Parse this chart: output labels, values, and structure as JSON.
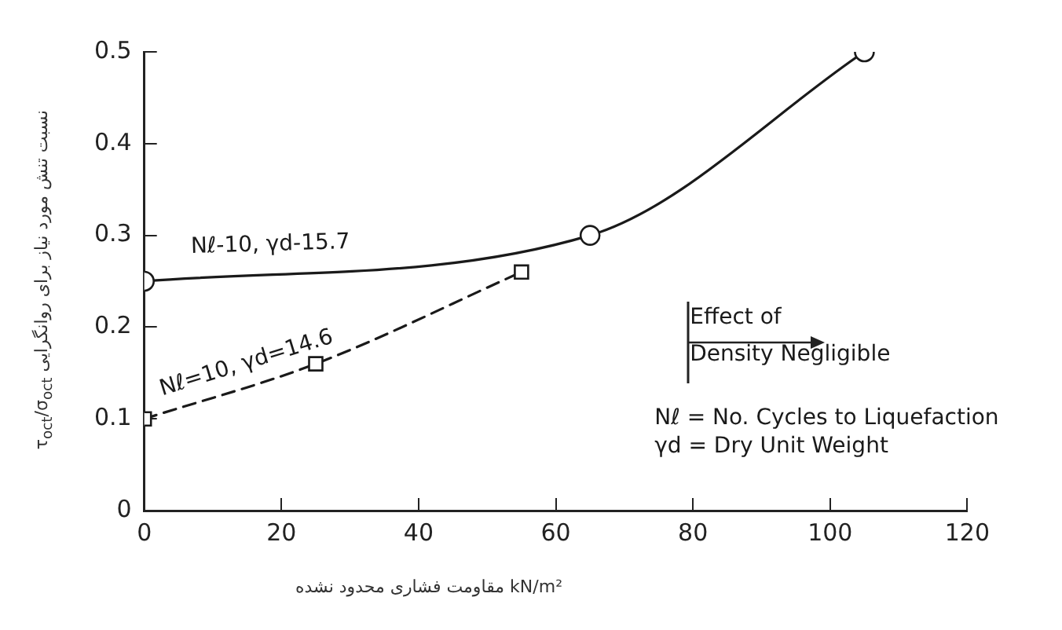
{
  "chart_data": {
    "type": "line",
    "xlabel": "مقاومت فشاری محدود نشده kN/m²",
    "ylabel": "τ$_{oct}$/σ$_{oct}$ نسبت تنش مورد نیاز برای روانگرایی",
    "xlim": [
      0,
      120
    ],
    "xticks": [
      0,
      20,
      40,
      60,
      80,
      100,
      120
    ],
    "ylim": [
      0,
      0.5
    ],
    "yticks": [
      0,
      0.1,
      0.2,
      0.3,
      0.4,
      0.5
    ],
    "grid": false,
    "legend": false,
    "series": [
      {
        "name": "Nℓ-10, γd-15.7",
        "color": "#1a1a1a",
        "x": [
          0,
          65,
          105
        ],
        "values": [
          0.25,
          0.3,
          0.5
        ],
        "marker": "circle",
        "line_style": "solid"
      },
      {
        "name": "Nℓ=10, γd=14.6",
        "color": "#1a1a1a",
        "x": [
          0,
          25,
          55
        ],
        "values": [
          0.1,
          0.16,
          0.26
        ],
        "marker": "square",
        "line_style": "dashed"
      }
    ],
    "annotations": [
      "Effect of",
      "Density Negligible",
      "Nℓ = No. Cycles to Liquefaction",
      "γd = Dry Unit Weight"
    ]
  }
}
